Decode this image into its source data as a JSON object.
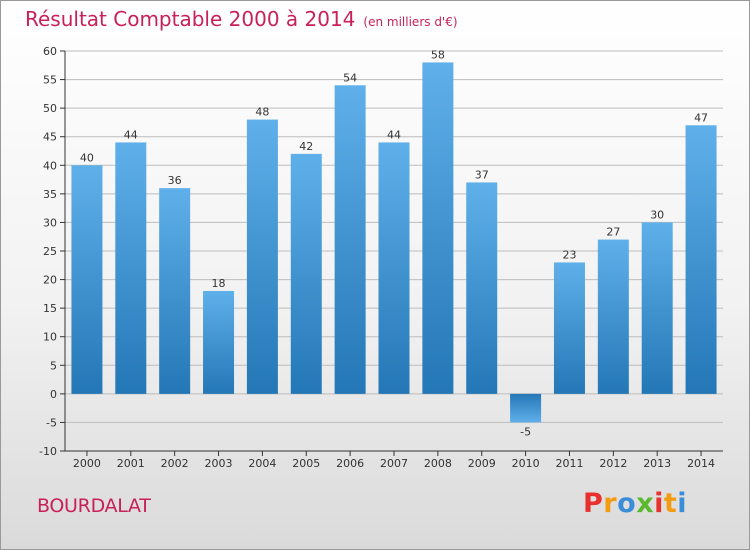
{
  "header": {
    "title": "Résultat Comptable 2000 à 2014",
    "subtitle": "(en milliers d'€)"
  },
  "commune": "BOURDALAT",
  "logo": {
    "letters": [
      "P",
      "r",
      "o",
      "x",
      "i",
      "t",
      "i"
    ],
    "colors": [
      "#e8302c",
      "#f39c12",
      "#3c8dd8",
      "#5cb82e",
      "#e8302c",
      "#f39c12",
      "#3c8dd8"
    ]
  },
  "colors": {
    "title": "#c8205a",
    "bar_light": "#5fb0ea",
    "bar_dark": "#2477b6",
    "axis": "#333333",
    "grid": "#bdbdbd"
  },
  "chart_data": {
    "type": "bar",
    "title": "Résultat Comptable 2000 à 2014",
    "subtitle": "(en milliers d'€)",
    "xlabel": "",
    "ylabel": "",
    "categories": [
      "2000",
      "2001",
      "2002",
      "2003",
      "2004",
      "2005",
      "2006",
      "2007",
      "2008",
      "2009",
      "2010",
      "2011",
      "2012",
      "2013",
      "2014"
    ],
    "values": [
      40,
      44,
      36,
      18,
      48,
      42,
      54,
      44,
      58,
      37,
      -5,
      23,
      27,
      30,
      47
    ],
    "ylim": [
      -10,
      60
    ],
    "yticks": [
      -10,
      -5,
      0,
      5,
      10,
      15,
      20,
      25,
      30,
      35,
      40,
      45,
      50,
      55,
      60
    ],
    "grid": true,
    "legend": "none"
  }
}
